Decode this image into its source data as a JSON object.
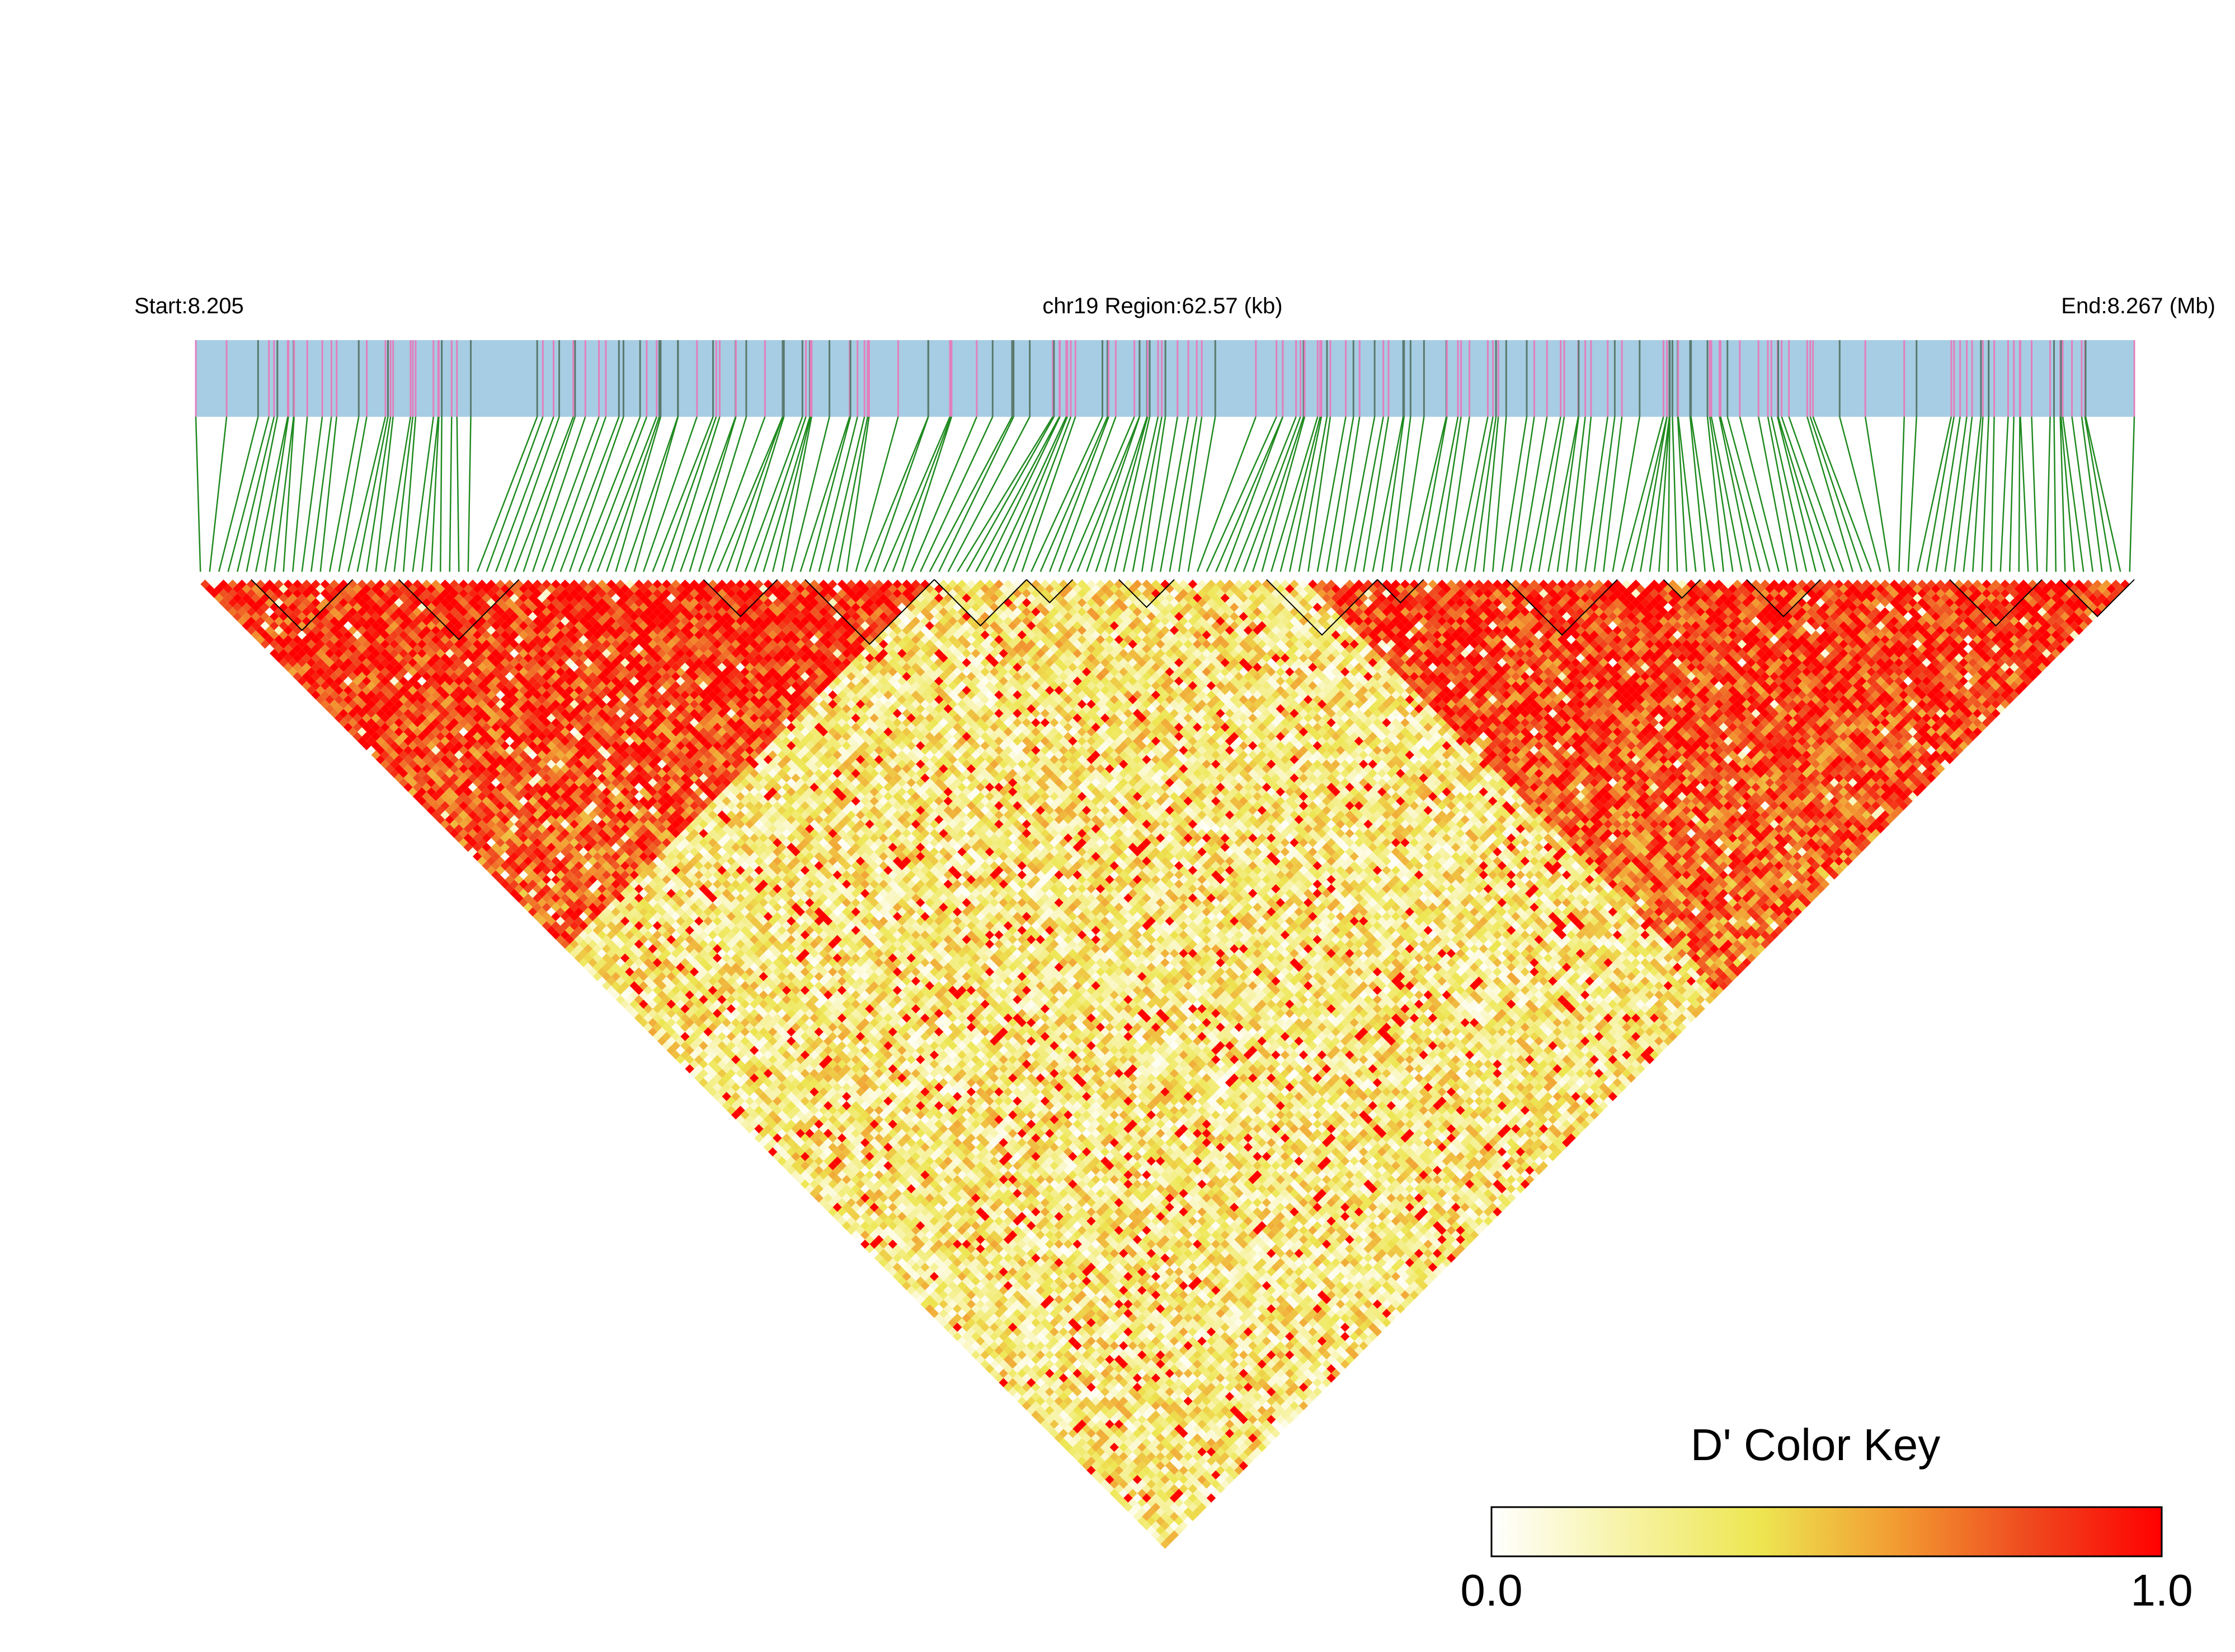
{
  "chart_data": {
    "type": "heatmap",
    "subtype": "linkage-disequilibrium-triangle",
    "labels": {
      "start": "Start:8.205",
      "region": "chr19 Region:62.57 (kb)",
      "end": "End:8.267 (Mb)"
    },
    "region": {
      "chromosome": "chr19",
      "start_mb": 8.205,
      "end_mb": 8.267,
      "length_kb": 62.57
    },
    "snp_count": 210,
    "metric": "D'",
    "color_key": {
      "title": "D' Color Key",
      "min_label": "0.0",
      "max_label": "1.0",
      "range": [
        0,
        1
      ],
      "stops": [
        "#ffffff",
        "#f7f3a6",
        "#ede651",
        "#f29d32",
        "#ef4a1f",
        "#ff0000"
      ]
    },
    "track_colors": {
      "gene_track": "#a6cde3",
      "variant_marks": [
        "#e27fbd",
        "#5a7a6e"
      ],
      "position_lines": "#1f8a1f",
      "block_outline": "#000000"
    },
    "ld_pattern": {
      "description_values": "D' between SNP pairs; high (near 1.0) in the left block (SNPs 1-80) and right block (SNPs 120-210), low (0.2-0.5) between blocks",
      "blocks": [
        {
          "snp_from": 1,
          "snp_to": 80,
          "mean_dprime": 0.9
        },
        {
          "snp_from": 80,
          "snp_to": 120,
          "mean_dprime": 0.35
        },
        {
          "snp_from": 120,
          "snp_to": 210,
          "mean_dprime": 0.88
        }
      ],
      "inter_block_mean_dprime": 0.3
    }
  }
}
